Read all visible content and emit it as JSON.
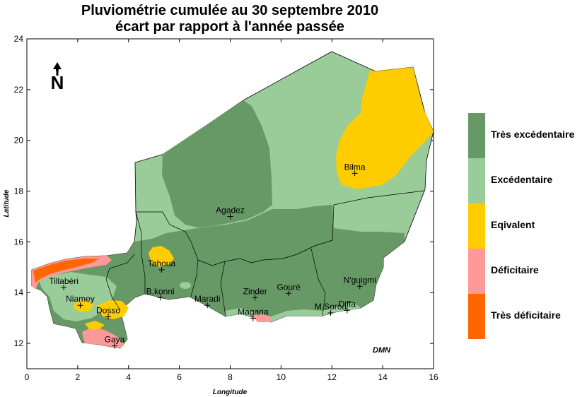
{
  "title": {
    "line1": "Pluviométrie cumulée au 30 septembre 2010",
    "line2": "écart par rapport à l'année passée"
  },
  "axes": {
    "xlabel": "Longitude",
    "ylabel": "Latitude",
    "x_ticks": [
      "0",
      "2",
      "4",
      "6",
      "8",
      "10",
      "12",
      "14",
      "16"
    ],
    "y_ticks": [
      "12",
      "14",
      "16",
      "18",
      "20",
      "22",
      "24"
    ]
  },
  "cities": [
    {
      "name": "Agadez",
      "lon": 8.0,
      "lat": 17.0
    },
    {
      "name": "Bilma",
      "lon": 12.9,
      "lat": 18.7
    },
    {
      "name": "Tahoua",
      "lon": 5.3,
      "lat": 14.9
    },
    {
      "name": "Tillabéri",
      "lon": 1.45,
      "lat": 14.2
    },
    {
      "name": "Niamey",
      "lon": 2.1,
      "lat": 13.5
    },
    {
      "name": "Dosso",
      "lon": 3.2,
      "lat": 13.05
    },
    {
      "name": "Gaya",
      "lon": 3.45,
      "lat": 11.9
    },
    {
      "name": "B.konni",
      "lon": 5.25,
      "lat": 13.8
    },
    {
      "name": "Maradi",
      "lon": 7.1,
      "lat": 13.5
    },
    {
      "name": "Zinder",
      "lon": 8.98,
      "lat": 13.8
    },
    {
      "name": "Gouré",
      "lon": 10.3,
      "lat": 13.97
    },
    {
      "name": "Magaria",
      "lon": 8.9,
      "lat": 12.99
    },
    {
      "name": "N'guigmi",
      "lon": 13.1,
      "lat": 14.25
    },
    {
      "name": "Diffa",
      "lon": 12.6,
      "lat": 13.3
    },
    {
      "name": "M.Soroa",
      "lon": 11.95,
      "lat": 13.2
    }
  ],
  "legend": [
    {
      "label": "Très excédentaire",
      "color": "#669966"
    },
    {
      "label": "Excédentaire",
      "color": "#99cc99"
    },
    {
      "label": "Eqivalent",
      "color": "#ffcc00"
    },
    {
      "label": "Déficitaire",
      "color": "#ff9999"
    },
    {
      "label": "Très déficitaire",
      "color": "#ff6600"
    }
  ],
  "north_arrow_label": "N",
  "credit": "DMN"
}
